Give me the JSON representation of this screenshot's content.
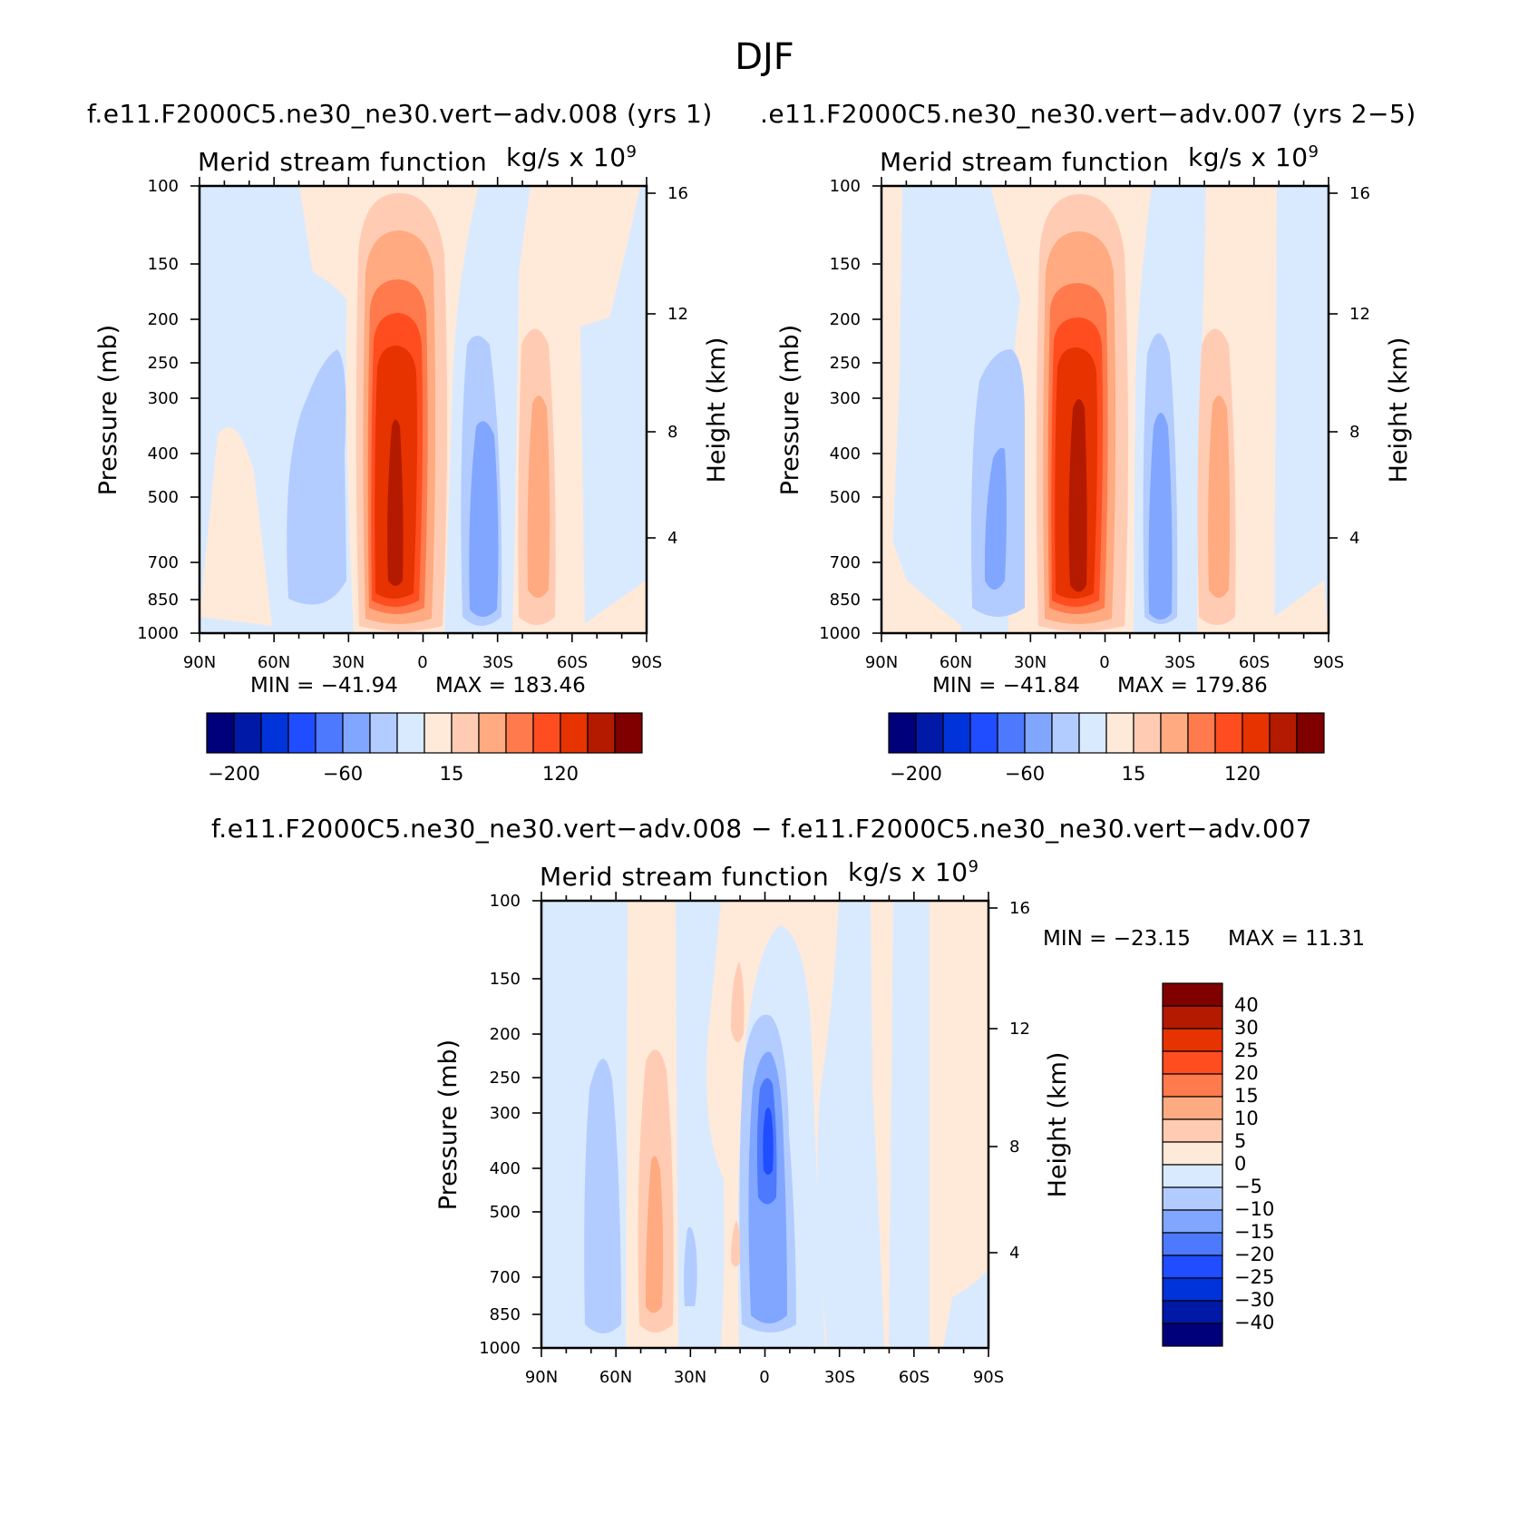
{
  "figure": {
    "title": "DJF"
  },
  "chart_data": [
    {
      "type": "heatmap",
      "title": "f.e11.F2000C5.ne30_ne30.vert−adv.008 (yrs 1)",
      "left_string": "Merid stream function",
      "right_string": "kg/s x 10",
      "units_exponent": "9",
      "ylabel": "Pressure (mb)",
      "ylabel_right": "Height (km)",
      "x_ticks": [
        "90N",
        "60N",
        "30N",
        "0",
        "30S",
        "60S",
        "90S"
      ],
      "y_ticks": [
        "100",
        "150",
        "200",
        "250",
        "300",
        "400",
        "500",
        "700",
        "850",
        "1000"
      ],
      "y_right_ticks": [
        "16",
        "12",
        "8",
        "4"
      ],
      "min_label": "MIN = −41.94",
      "max_label": "MAX = 183.46",
      "min": -41.94,
      "max": 183.46,
      "colorbar_labels": [
        "−200",
        "−60",
        "15",
        "120"
      ]
    },
    {
      "type": "heatmap",
      "title": ".e11.F2000C5.ne30_ne30.vert−adv.007 (yrs 2−5)",
      "left_string": "Merid stream function",
      "right_string": "kg/s x 10",
      "units_exponent": "9",
      "ylabel": "Pressure (mb)",
      "ylabel_right": "Height (km)",
      "x_ticks": [
        "90N",
        "60N",
        "30N",
        "0",
        "30S",
        "60S",
        "90S"
      ],
      "y_ticks": [
        "100",
        "150",
        "200",
        "250",
        "300",
        "400",
        "500",
        "700",
        "850",
        "1000"
      ],
      "y_right_ticks": [
        "16",
        "12",
        "8",
        "4"
      ],
      "min_label": "MIN = −41.84",
      "max_label": "MAX = 179.86",
      "min": -41.84,
      "max": 179.86,
      "colorbar_labels": [
        "−200",
        "−60",
        "15",
        "120"
      ]
    },
    {
      "type": "heatmap",
      "title": "f.e11.F2000C5.ne30_ne30.vert−adv.008 − f.e11.F2000C5.ne30_ne30.vert−adv.007",
      "left_string": "Merid stream function",
      "right_string": "kg/s x 10",
      "units_exponent": "9",
      "ylabel": "Pressure (mb)",
      "ylabel_right": "Height (km)",
      "x_ticks": [
        "90N",
        "60N",
        "30N",
        "0",
        "30S",
        "60S",
        "90S"
      ],
      "y_ticks": [
        "100",
        "150",
        "200",
        "250",
        "300",
        "400",
        "500",
        "700",
        "850",
        "1000"
      ],
      "y_right_ticks": [
        "16",
        "12",
        "8",
        "4"
      ],
      "min_label": "MIN = −23.15",
      "max_label": "MAX =   11.31",
      "min": -23.15,
      "max": 11.31,
      "colorbar_labels": [
        "40",
        "30",
        "25",
        "20",
        "15",
        "10",
        "5",
        "0",
        "−5",
        "−10",
        "−15",
        "−20",
        "−25",
        "−30",
        "−40"
      ]
    }
  ],
  "colors": {
    "diverging": [
      "#00007a",
      "#0019a6",
      "#0033d9",
      "#1f4dff",
      "#4d79ff",
      "#80a6ff",
      "#b3ccff",
      "#d9eaff",
      "#ffe9d9",
      "#ffccb3",
      "#ffaa80",
      "#ff7a4d",
      "#ff4d1f",
      "#e63300",
      "#b31a00",
      "#800000"
    ]
  }
}
